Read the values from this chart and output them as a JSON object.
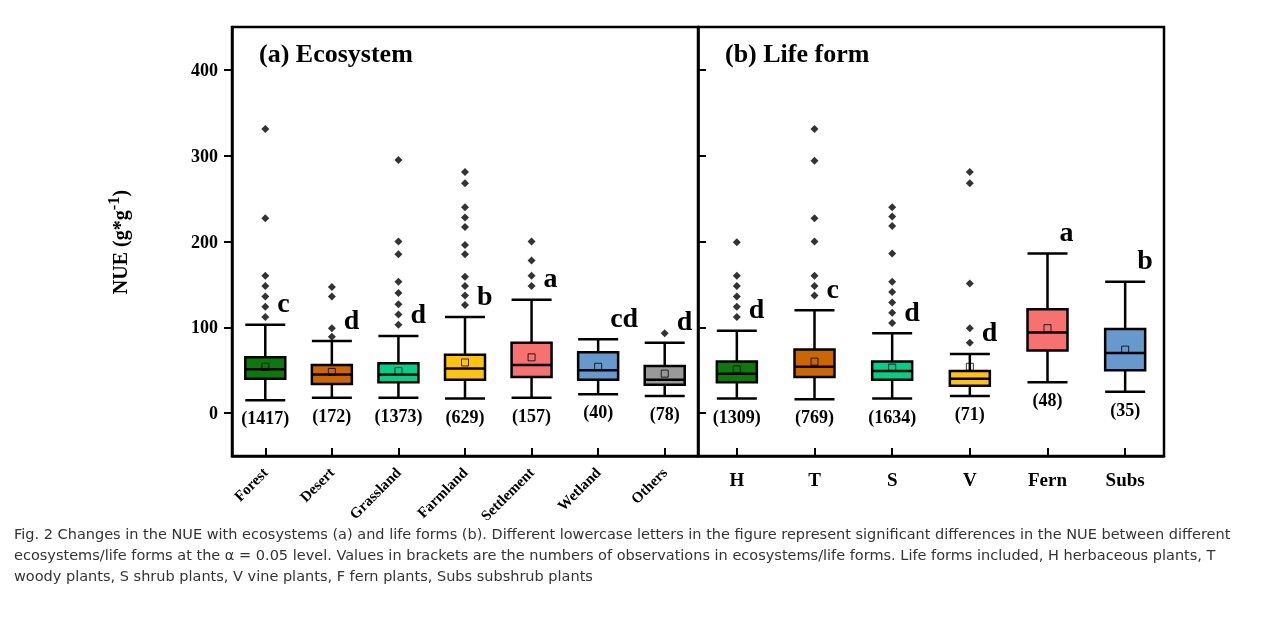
{
  "chart_data": [
    {
      "type": "box",
      "title": "(a) Ecosystem",
      "ylabel": "NUE (g*g$^{-1}$)",
      "categories": [
        "Forest",
        "Desert",
        "Grassland",
        "Farmland",
        "Settlement",
        "Wetland",
        "Others"
      ],
      "colors": [
        "#0b7a0b",
        "#cc6600",
        "#00d08a",
        "#ffc20e",
        "#f87171",
        "#6699cc",
        "#999999"
      ],
      "boxes": [
        {
          "low": 15,
          "q1": 40,
          "median": 51,
          "q3": 65,
          "high": 103,
          "mean": 54,
          "outliers": [
            331,
            227,
            160,
            148,
            136,
            124,
            112
          ]
        },
        {
          "low": 18,
          "q1": 34,
          "median": 45,
          "q3": 56,
          "high": 84,
          "mean": 48,
          "outliers": [
            147,
            136,
            99,
            89
          ]
        },
        {
          "low": 18,
          "q1": 36,
          "median": 45,
          "q3": 58,
          "high": 90,
          "mean": 49,
          "outliers": [
            295,
            200,
            185,
            153,
            140,
            127,
            115,
            103
          ]
        },
        {
          "low": 17,
          "q1": 39,
          "median": 52,
          "q3": 68,
          "high": 112,
          "mean": 59,
          "outliers": [
            281,
            268,
            240,
            228,
            217,
            196,
            185,
            159,
            148,
            137,
            126
          ]
        },
        {
          "low": 18,
          "q1": 42,
          "median": 56,
          "q3": 82,
          "high": 132,
          "mean": 65,
          "outliers": [
            200,
            178,
            160,
            148
          ]
        },
        {
          "low": 22,
          "q1": 39,
          "median": 50,
          "q3": 71,
          "high": 86,
          "mean": 54
        },
        {
          "low": 20,
          "q1": 33,
          "median": 39,
          "q3": 55,
          "high": 82,
          "mean": 46,
          "outliers": [
            93
          ]
        }
      ],
      "ylim": [
        -50,
        450
      ],
      "yticks": [
        0,
        100,
        200,
        300,
        400
      ],
      "annotations": [
        "(1417)",
        "(172)",
        "(1373)",
        "(629)",
        "(157)",
        "(40)",
        "(78)",
        "c",
        "d",
        "d",
        "b",
        "a",
        "cd",
        "d",
        "Fig. 2  Changes in the NUE with ecosystems (a) and life forms (b). Different lowercase letters in the figure represent significant differences in the NUE between different ecosystems/life forms at the α = 0.05 level. Values in brackets are the numbers of observations in ecosystems/life forms. Life forms included, H herbaceous plants, T woody plants, S shrub plants, V vine plants, F fern plants, Subs subshrub plants"
      ]
    },
    {
      "type": "box",
      "title": "(b) Life form",
      "categories": [
        "H",
        "T",
        "S",
        "V",
        "Fern",
        "Subs"
      ],
      "colors": [
        "#0b7a0b",
        "#cc6600",
        "#00d08a",
        "#ffc20e",
        "#f87171",
        "#6699cc"
      ],
      "boxes": [
        {
          "low": 17,
          "q1": 36,
          "median": 46,
          "q3": 60,
          "high": 96,
          "mean": 51,
          "outliers": [
            199,
            160,
            148,
            136,
            124,
            112
          ]
        },
        {
          "low": 16,
          "q1": 42,
          "median": 54,
          "q3": 74,
          "high": 120,
          "mean": 60,
          "outliers": [
            331,
            294,
            227,
            200,
            160,
            148,
            137
          ]
        },
        {
          "low": 17,
          "q1": 39,
          "median": 49,
          "q3": 60,
          "high": 93,
          "mean": 53,
          "outliers": [
            240,
            229,
            218,
            186,
            153,
            141,
            129,
            117,
            105
          ]
        },
        {
          "low": 20,
          "q1": 32,
          "median": 40,
          "q3": 49,
          "high": 69,
          "mean": 54,
          "outliers": [
            281,
            268,
            151,
            99,
            82
          ]
        },
        {
          "low": 36,
          "q1": 73,
          "median": 94,
          "q3": 121,
          "high": 186,
          "mean": 99
        },
        {
          "low": 25,
          "q1": 50,
          "median": 70,
          "q3": 98,
          "high": 153,
          "mean": 74
        }
      ],
      "ylim": [
        -50,
        450
      ],
      "yticks": [
        0,
        100,
        200,
        300,
        400
      ],
      "tick_labels": "x",
      "annotations": [
        "(1309)",
        "(769)",
        "(1634)",
        "(71)",
        "(48)",
        "(35)",
        "d",
        "c",
        "d",
        "d",
        "a",
        "b"
      ]
    }
  ]
}
